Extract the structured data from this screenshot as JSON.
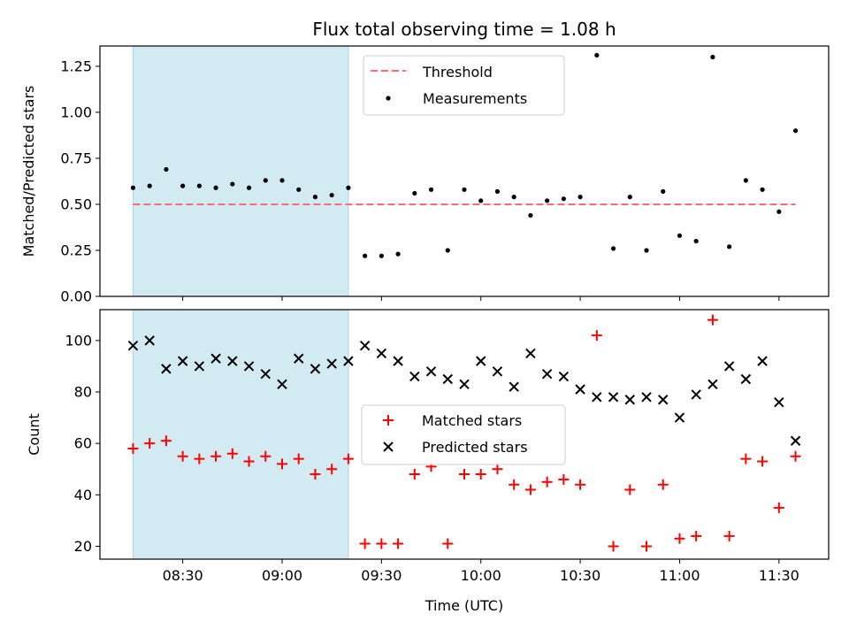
{
  "chart_data": [
    {
      "type": "scatter",
      "title": "Flux total observing time = 1.08 h",
      "xlabel": "",
      "ylabel": "Matched/Predicted stars",
      "ylim": [
        0,
        1.36
      ],
      "yticks": [
        "0.00",
        "0.25",
        "0.50",
        "0.75",
        "1.00",
        "1.25"
      ],
      "xlim": [
        "08:05",
        "11:45"
      ],
      "xticks": [
        "08:30",
        "09:00",
        "09:30",
        "10:00",
        "10:30",
        "11:00",
        "11:30"
      ],
      "shaded_span": [
        "08:15",
        "09:20"
      ],
      "shade_color": "#add8e6",
      "threshold": {
        "label": "Threshold",
        "value": 0.5,
        "x_range": [
          "08:15",
          "11:35"
        ],
        "color": "#ff6b6b"
      },
      "legend": {
        "position": "top-center",
        "entries": [
          "Threshold",
          "Measurements"
        ]
      },
      "series": [
        {
          "name": "Measurements",
          "color": "#000000",
          "x": [
            "08:15",
            "08:20",
            "08:25",
            "08:30",
            "08:35",
            "08:40",
            "08:45",
            "08:50",
            "08:55",
            "09:00",
            "09:05",
            "09:10",
            "09:15",
            "09:20",
            "09:25",
            "09:30",
            "09:35",
            "09:40",
            "09:45",
            "09:50",
            "09:55",
            "10:00",
            "10:05",
            "10:10",
            "10:15",
            "10:20",
            "10:25",
            "10:30",
            "10:35",
            "10:40",
            "10:45",
            "10:50",
            "10:55",
            "11:00",
            "11:05",
            "11:10",
            "11:15",
            "11:20",
            "11:25",
            "11:30",
            "11:35"
          ],
          "y": [
            0.59,
            0.6,
            0.69,
            0.6,
            0.6,
            0.59,
            0.61,
            0.59,
            0.63,
            0.63,
            0.58,
            0.54,
            0.55,
            0.59,
            0.22,
            0.22,
            0.23,
            0.56,
            0.58,
            0.25,
            0.58,
            0.52,
            0.57,
            0.54,
            0.44,
            0.52,
            0.53,
            0.54,
            1.31,
            0.26,
            0.54,
            0.25,
            0.57,
            0.33,
            0.3,
            1.3,
            0.27,
            0.63,
            0.58,
            0.46,
            0.9
          ]
        }
      ]
    },
    {
      "type": "scatter",
      "title": "",
      "xlabel": "Time (UTC)",
      "ylabel": "Count",
      "ylim": [
        15,
        112
      ],
      "yticks": [
        "20",
        "40",
        "60",
        "80",
        "100"
      ],
      "xlim": [
        "08:05",
        "11:45"
      ],
      "xticks": [
        "08:30",
        "09:00",
        "09:30",
        "10:00",
        "10:30",
        "11:00",
        "11:30"
      ],
      "shaded_span": [
        "08:15",
        "09:20"
      ],
      "shade_color": "#add8e6",
      "legend": {
        "position": "center",
        "entries": [
          "Matched stars",
          "Predicted stars"
        ]
      },
      "series": [
        {
          "name": "Matched stars",
          "marker": "plus",
          "color": "#ff0000",
          "x": [
            "08:15",
            "08:20",
            "08:25",
            "08:30",
            "08:35",
            "08:40",
            "08:45",
            "08:50",
            "08:55",
            "09:00",
            "09:05",
            "09:10",
            "09:15",
            "09:20",
            "09:25",
            "09:30",
            "09:35",
            "09:40",
            "09:45",
            "09:50",
            "09:55",
            "10:00",
            "10:05",
            "10:10",
            "10:15",
            "10:20",
            "10:25",
            "10:30",
            "10:35",
            "10:40",
            "10:45",
            "10:50",
            "10:55",
            "11:00",
            "11:05",
            "11:10",
            "11:15",
            "11:20",
            "11:25",
            "11:30",
            "11:35"
          ],
          "y": [
            58,
            60,
            61,
            55,
            54,
            55,
            56,
            53,
            55,
            52,
            54,
            48,
            50,
            54,
            21,
            21,
            21,
            48,
            51,
            21,
            48,
            48,
            50,
            44,
            42,
            45,
            46,
            44,
            102,
            20,
            42,
            20,
            44,
            23,
            24,
            108,
            24,
            54,
            53,
            35,
            55
          ]
        },
        {
          "name": "Predicted stars",
          "marker": "x",
          "color": "#000000",
          "x": [
            "08:15",
            "08:20",
            "08:25",
            "08:30",
            "08:35",
            "08:40",
            "08:45",
            "08:50",
            "08:55",
            "09:00",
            "09:05",
            "09:10",
            "09:15",
            "09:20",
            "09:25",
            "09:30",
            "09:35",
            "09:40",
            "09:45",
            "09:50",
            "09:55",
            "10:00",
            "10:05",
            "10:10",
            "10:15",
            "10:20",
            "10:25",
            "10:30",
            "10:35",
            "10:40",
            "10:45",
            "10:50",
            "10:55",
            "11:00",
            "11:05",
            "11:10",
            "11:15",
            "11:20",
            "11:25",
            "11:30",
            "11:35"
          ],
          "y": [
            98,
            100,
            89,
            92,
            90,
            93,
            92,
            90,
            87,
            83,
            93,
            89,
            91,
            92,
            98,
            95,
            92,
            86,
            88,
            85,
            83,
            92,
            88,
            82,
            95,
            87,
            86,
            81,
            78,
            78,
            77,
            78,
            77,
            70,
            79,
            83,
            90,
            85,
            92,
            76,
            61
          ]
        }
      ]
    }
  ]
}
